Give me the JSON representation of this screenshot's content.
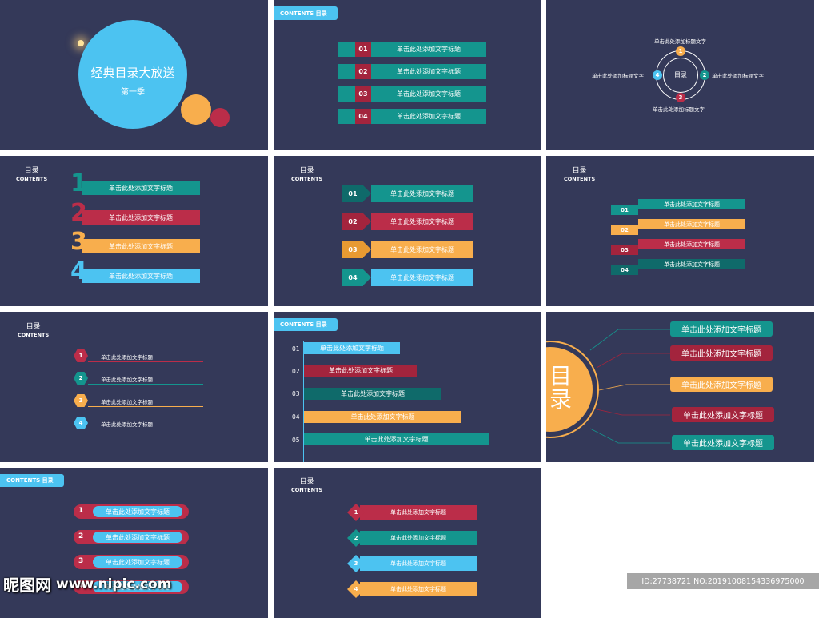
{
  "colors": {
    "bg": "#343959",
    "teal": "#14958e",
    "red": "#bb2d49",
    "orange": "#f8ae4d",
    "blue": "#4cc3f1",
    "darkteal": "#0f6a6a",
    "crimson": "#a3243d"
  },
  "s1": {
    "title": "经典目录大放送",
    "subtitle": "第一季"
  },
  "s2": {
    "tag": "CONTENTS  目录",
    "rows": [
      {
        "num": "01",
        "label": "单击此处添加文字标题"
      },
      {
        "num": "02",
        "label": "单击此处添加文字标题"
      },
      {
        "num": "03",
        "label": "单击此处添加文字标题"
      },
      {
        "num": "04",
        "label": "单击此处添加文字标题"
      }
    ]
  },
  "s3": {
    "center": "目录",
    "top": "单击此处添加标题文字",
    "right": "单击此处添加标题文字",
    "bottom": "单击此处添加标题文字",
    "left": "单击此处添加标题文字",
    "n1": "1",
    "n2": "2",
    "n3": "3",
    "n4": "4"
  },
  "s4": {
    "title": "目录",
    "sub": "CONTENTS",
    "rows": [
      {
        "num": "1",
        "label": "单击此处添加文字标题"
      },
      {
        "num": "2",
        "label": "单击此处添加文字标题"
      },
      {
        "num": "3",
        "label": "单击此处添加文字标题"
      },
      {
        "num": "4",
        "label": "单击此处添加文字标题"
      }
    ]
  },
  "s5": {
    "title": "目录",
    "sub": "CONTENTS",
    "rows": [
      {
        "num": "01",
        "label": "单击此处添加文字标题"
      },
      {
        "num": "02",
        "label": "单击此处添加文字标题"
      },
      {
        "num": "03",
        "label": "单击此处添加文字标题"
      },
      {
        "num": "04",
        "label": "单击此处添加文字标题"
      }
    ]
  },
  "s6": {
    "title": "目录",
    "sub": "CONTENTS",
    "rows": [
      {
        "num": "01",
        "label": "单击此处添加文字标题"
      },
      {
        "num": "02",
        "label": "单击此处添加文字标题"
      },
      {
        "num": "03",
        "label": "单击此处添加文字标题"
      },
      {
        "num": "04",
        "label": "单击此处添加文字标题"
      }
    ]
  },
  "s7": {
    "title": "目录",
    "sub": "CONTENTS",
    "rows": [
      {
        "num": "1",
        "label": "单击此处添加文字标题"
      },
      {
        "num": "2",
        "label": "单击此处添加文字标题"
      },
      {
        "num": "3",
        "label": "单击此处添加文字标题"
      },
      {
        "num": "4",
        "label": "单击此处添加文字标题"
      }
    ]
  },
  "s8": {
    "tag": "CONTENTS  目录",
    "rows": [
      {
        "num": "01",
        "label": "单击此处添加文字标题"
      },
      {
        "num": "02",
        "label": "单击此处添加文字标题"
      },
      {
        "num": "03",
        "label": "单击此处添加文字标题"
      },
      {
        "num": "04",
        "label": "单击此处添加文字标题"
      },
      {
        "num": "05",
        "label": "单击此处添加文字标题"
      }
    ]
  },
  "s9": {
    "big": "目录",
    "rows": [
      {
        "label": "单击此处添加文字标题"
      },
      {
        "label": "单击此处添加文字标题"
      },
      {
        "label": "单击此处添加文字标题"
      },
      {
        "label": "单击此处添加文字标题"
      },
      {
        "label": "单击此处添加文字标题"
      }
    ]
  },
  "s10": {
    "tag": "CONTENTS  目录",
    "rows": [
      {
        "num": "1",
        "label": "单击此处添加文字标题"
      },
      {
        "num": "2",
        "label": "单击此处添加文字标题"
      },
      {
        "num": "3",
        "label": "单击此处添加文字标题"
      },
      {
        "num": "4",
        "label": "单击此处添加文字标题"
      }
    ]
  },
  "s11": {
    "title": "目录",
    "sub": "CONTENTS",
    "rows": [
      {
        "num": "1",
        "label": "单击此处添加文字标题"
      },
      {
        "num": "2",
        "label": "单击此处添加文字标题"
      },
      {
        "num": "3",
        "label": "单击此处添加文字标题"
      },
      {
        "num": "4",
        "label": "单击此处添加文字标题"
      }
    ]
  },
  "watermark": {
    "logo": "昵图网",
    "url": "www.nipic.com",
    "id": "ID:27738721 NO:20191008154336975000"
  }
}
